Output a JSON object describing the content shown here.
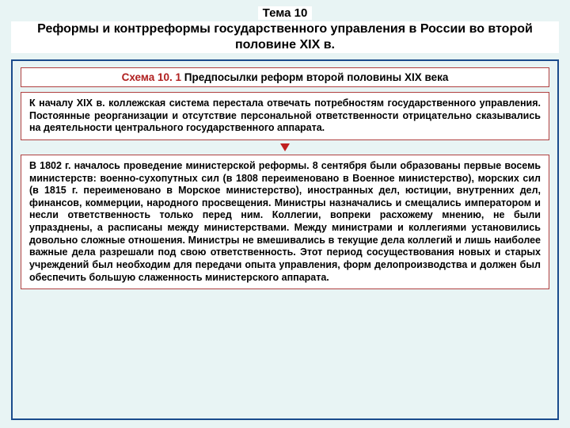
{
  "header": {
    "topic_label": "Тема 10",
    "title": "Реформы и контрреформы государственного управления в России во второй половине XIX в."
  },
  "scheme": {
    "label_prefix": "Схема 10. 1",
    "label_rest": " Предпосылки реформ второй половины XIX века"
  },
  "box1": {
    "text": "К началу XIX в. коллежская система перестала отвечать потребностям государственного управления. Постоянные реорганизации и отсутствие персональной ответственности отрицательно сказывались на деятельности центрального государственного аппарата."
  },
  "box2": {
    "text": "В 1802 г. началось проведение министерской реформы. 8 сентября были образованы первые восемь министерств: военно-сухопутных сил (в 1808 переименовано в Военное министерство), морских сил (в 1815 г. переименовано в Морское министерство), иностранных дел, юстиции, внутренних дел, финансов, коммерции, народного просвещения. Министры назначались и смещались императором и несли ответственность только перед ним. Коллегии, вопреки расхожему мнению, не были упразднены, а расписаны между министерствами. Между министрами и коллегиями установились довольно сложные отношения. Министры не вмешивались в текущие дела коллегий и лишь наиболее важные дела разрешали под свою ответственность. Этот период сосуществования новых и старых учреждений был необходим для передачи опыта управления, форм делопроизводства и должен был обеспечить большую слаженность министерского аппарата."
  },
  "colors": {
    "page_bg": "#e8f4f4",
    "outer_border": "#1a4b8c",
    "inner_border": "#b04040",
    "arrow": "#c02020",
    "scheme_red": "#b02020"
  }
}
